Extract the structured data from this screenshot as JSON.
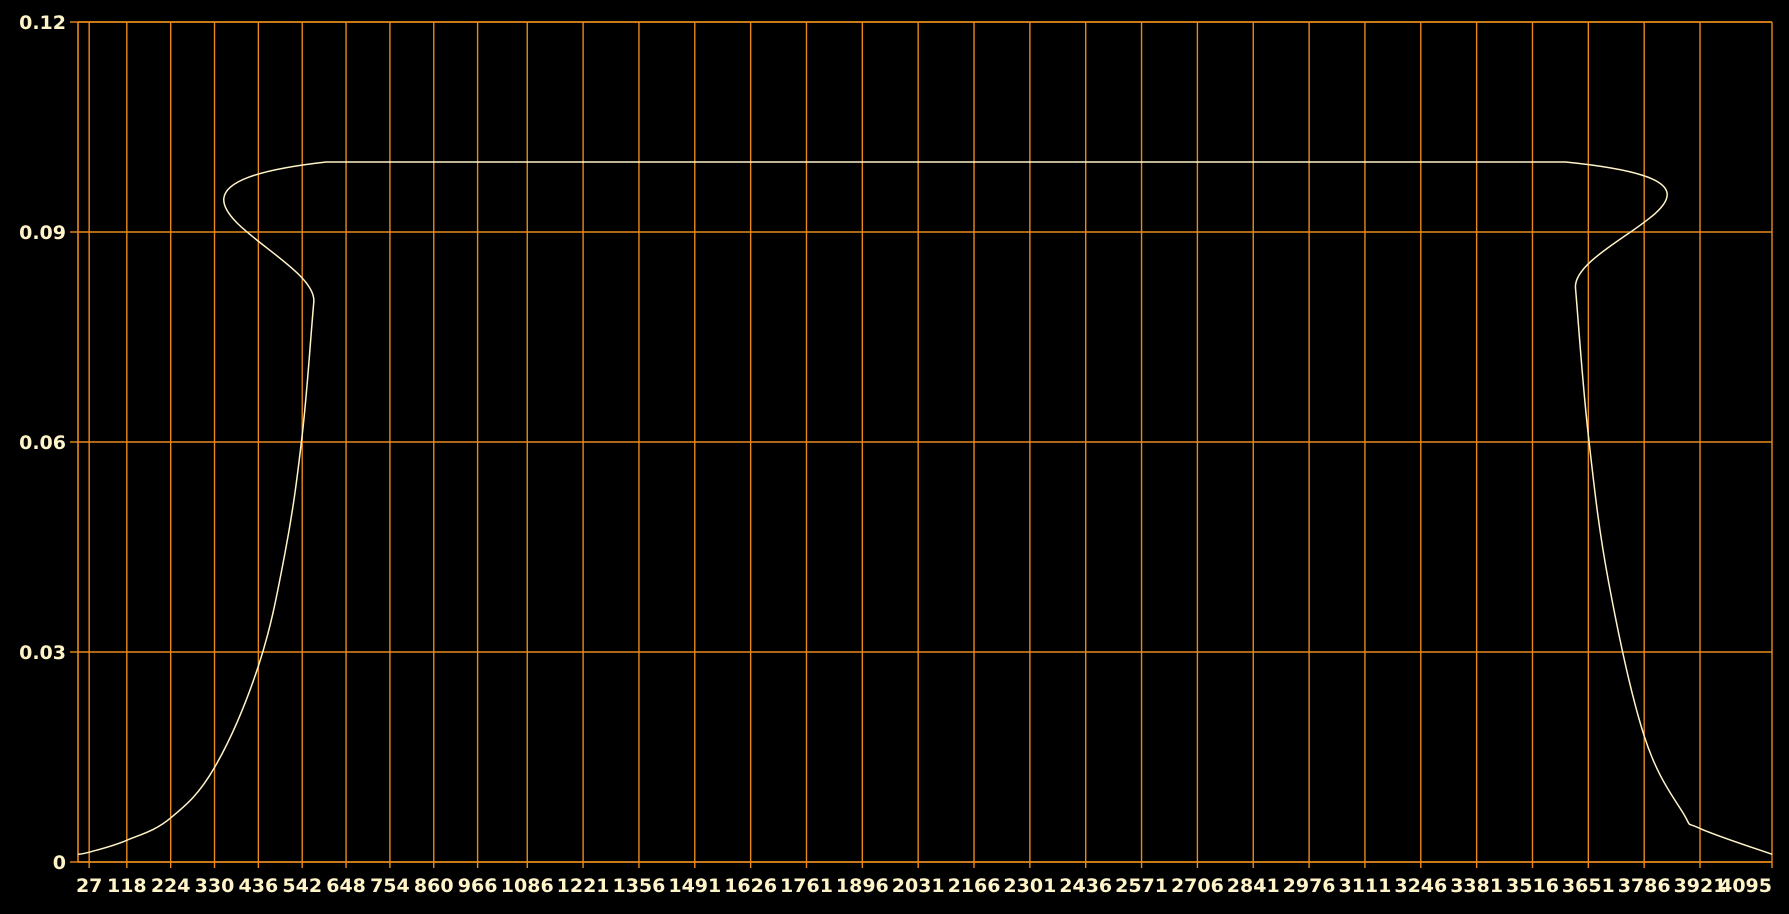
{
  "colors": {
    "background": "#000000",
    "grid": "#e8891b",
    "axis": "#e8891b",
    "line": "#fff3c8",
    "text": "#fff3c8"
  },
  "chart_data": {
    "type": "line",
    "title": "",
    "xlabel": "",
    "ylabel": "",
    "xlim": [
      0,
      4095
    ],
    "ylim": [
      0,
      0.12
    ],
    "grid": true,
    "legend": "none",
    "x_ticks": [
      27,
      118,
      224,
      330,
      436,
      542,
      648,
      754,
      860,
      966,
      1086,
      1221,
      1356,
      1491,
      1626,
      1761,
      1896,
      2031,
      2166,
      2301,
      2436,
      2571,
      2706,
      2841,
      2976,
      3111,
      3246,
      3381,
      3516,
      3651,
      3786,
      3921,
      4095
    ],
    "x_tick_labels": [
      "27",
      "118",
      "224",
      "330",
      "436",
      "542",
      "648",
      "754",
      "860",
      "966",
      "1086",
      "1221",
      "1356",
      "1491",
      "1626",
      "1761",
      "1896",
      "2031",
      "2166",
      "2301",
      "2436",
      "2571",
      "2706",
      "2841",
      "2976",
      "3111",
      "3246",
      "3381",
      "3516",
      "3651",
      "3786",
      "3921",
      "4095"
    ],
    "y_ticks": [
      0,
      0.03,
      0.06,
      0.09,
      0.12
    ],
    "y_tick_labels": [
      "0",
      "0.03",
      "0.06",
      "0.09",
      "0.12"
    ],
    "series": [
      {
        "x": [
          0,
          27,
          118,
          224,
          330,
          436,
          500,
          542,
          570,
          600,
          3596,
          3620,
          3651,
          3700,
          3786,
          3880,
          3921,
          4095
        ],
        "values": [
          0.0011,
          0.0014,
          0.0031,
          0.0063,
          0.0135,
          0.028,
          0.044,
          0.061,
          0.08,
          0.1,
          0.1,
          0.082,
          0.061,
          0.04,
          0.018,
          0.007,
          0.0048,
          0.0011
        ]
      }
    ]
  }
}
